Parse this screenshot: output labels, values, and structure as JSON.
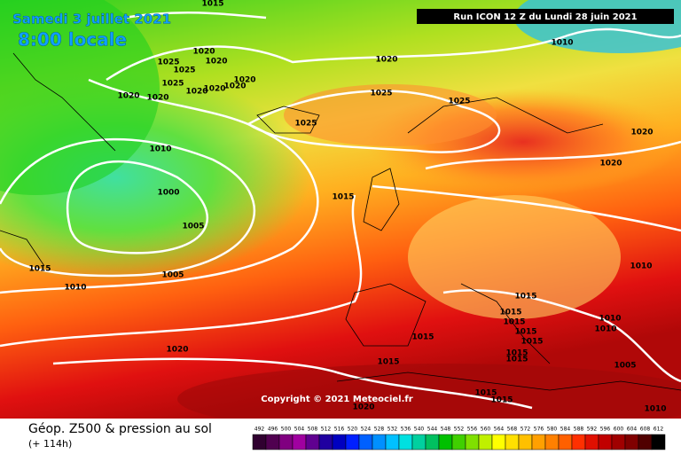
{
  "header": {
    "date": "Samedi 3 juillet 2021",
    "time": "8:00 locale",
    "run": "Run ICON 12 Z du Lundi 28 juin 2021"
  },
  "isobar_labels": [
    1015,
    1020,
    1025,
    1025,
    1020,
    1020,
    1025,
    1020,
    1020,
    1020,
    1020,
    1020,
    1020,
    1010,
    1025,
    1025,
    1025,
    1020,
    1020,
    1010,
    1000,
    1005,
    1015,
    1015,
    1010,
    1005,
    1010,
    1015,
    1015,
    1015,
    1015,
    1015,
    1015,
    1020,
    1015,
    1015,
    1010,
    1010,
    1005,
    1015,
    1015,
    1015,
    1020,
    1010
  ],
  "copyright": "Copyright © 2021 Meteociel.fr",
  "footer": {
    "title": "Géop. Z500 & pression au sol",
    "lead": "(+ 114h)"
  },
  "legend_ticks": [
    492,
    496,
    500,
    504,
    508,
    512,
    516,
    520,
    524,
    528,
    532,
    536,
    540,
    544,
    548,
    552,
    556,
    560,
    564,
    568,
    572,
    576,
    580,
    584,
    588,
    592,
    596,
    600,
    604,
    608,
    612
  ]
}
